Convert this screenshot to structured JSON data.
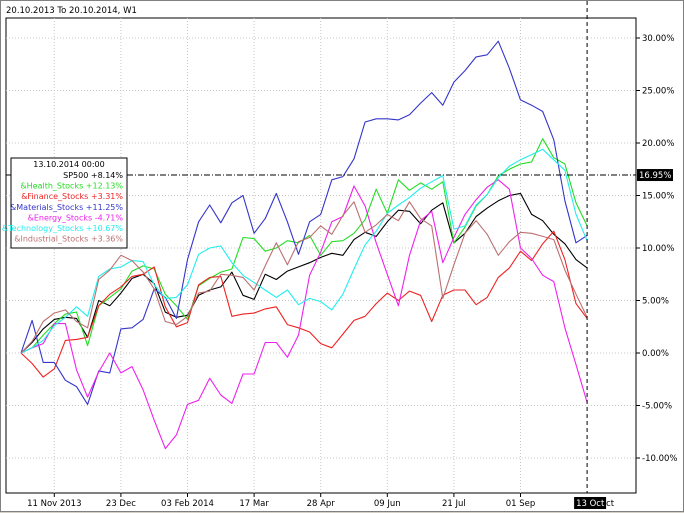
{
  "chart_data": {
    "type": "line",
    "title": "20.10.2013 To 20.10.2014, W1",
    "x_ticks": [
      "11 Nov 2013",
      "23 Dec",
      "03 Feb 2014",
      "17 Mar",
      "28 Apr",
      "09 Jun",
      "21 Jul",
      "01 Sep"
    ],
    "x_tick_weeks": [
      3,
      9,
      15,
      21,
      27,
      33,
      39,
      45
    ],
    "cursor_x_label": "13 Oct",
    "cursor_x_suffix": "ct",
    "cursor_y_label": "16.95%",
    "cursor_week": 51,
    "y_ticks": [
      "30.00%",
      "25.00%",
      "20.00%",
      "15.00%",
      "10.00%",
      "5.00%",
      "0.00%",
      "-5.00%",
      "-10.00%"
    ],
    "y_tick_values": [
      30,
      25,
      20,
      15,
      10,
      5,
      0,
      -5,
      -10
    ],
    "ylim": [
      -13.5,
      32.5
    ],
    "grid": true,
    "legend": {
      "header": "13.10.2014 00:00",
      "position": "top-left",
      "entries": [
        "SP500 +8.14%",
        "&Health_Stocks +12.13%",
        "&Finance_Stocks +3.31%",
        "&Materials_Stocks +11.25%",
        "&Energy_Stocks -4.71%",
        "&Technology_Stocks +10.67%",
        "&Industrial_Stocks +3.36%"
      ]
    },
    "series": [
      {
        "name": "SP500",
        "color": "#000000",
        "values": [
          0,
          1,
          2.3,
          3.2,
          3.4,
          3.3,
          1.5,
          5,
          4.5,
          5.7,
          7.1,
          7.5,
          6.6,
          3.9,
          3.4,
          3.6,
          5.5,
          6,
          6.3,
          7.7,
          5.5,
          5.1,
          7.5,
          7,
          7.8,
          8.2,
          8.6,
          9.1,
          9.5,
          9.3,
          10.8,
          11.5,
          11.1,
          12.5,
          13.6,
          13.5,
          12.3,
          13.6,
          14.3,
          10.5,
          11.4,
          13,
          13.8,
          14.5,
          15,
          15.2,
          13.2,
          12.6,
          11.3,
          10.4,
          8.9,
          8.1
        ]
      },
      {
        "name": "&Health_Stocks",
        "color": "#22dd22",
        "values": [
          0,
          0.5,
          1.7,
          2.8,
          3.7,
          3.9,
          0.7,
          4.5,
          5.3,
          6.1,
          7.8,
          8.3,
          8,
          5.6,
          4.5,
          3.2,
          6.4,
          7.1,
          7.7,
          8,
          11,
          10.9,
          9.7,
          10,
          10.7,
          10.5,
          11.2,
          9.3,
          10.6,
          10.7,
          11.4,
          12.7,
          15.6,
          13.3,
          16.5,
          15.5,
          16.2,
          15.6,
          16.3,
          10.5,
          12,
          14,
          15.1,
          16.9,
          17.5,
          18,
          18.2,
          20.4,
          18.6,
          18,
          14.3,
          12.1
        ]
      },
      {
        "name": "&Finance_Stocks",
        "color": "#ee2222",
        "values": [
          0,
          -1,
          -2.3,
          -1.5,
          1.2,
          1.3,
          1.5,
          4.5,
          5.6,
          6.3,
          7.3,
          7.5,
          8.2,
          4.4,
          2.5,
          2.9,
          6.5,
          7.2,
          7.3,
          3.5,
          3.7,
          3.8,
          4.2,
          4.4,
          2.7,
          2.4,
          2,
          0.9,
          0.5,
          1.8,
          3.1,
          3.5,
          4.7,
          5.7,
          5,
          5.9,
          5.5,
          3,
          5.5,
          6,
          6,
          4.6,
          5.3,
          7.2,
          8.1,
          9.7,
          8.8,
          10.4,
          11.6,
          8.9,
          4.7,
          3.3
        ]
      },
      {
        "name": "&Materials_Stocks",
        "color": "#3535cc",
        "values": [
          0,
          3.1,
          -0.9,
          -0.9,
          -2.6,
          -3.2,
          -4.9,
          -1.7,
          -1.9,
          2.3,
          2.4,
          3.2,
          6.1,
          5.3,
          3.3,
          8.9,
          12.5,
          14.1,
          12.4,
          14.3,
          15,
          11.4,
          12.8,
          15.2,
          12.5,
          9.4,
          12.5,
          13.2,
          16.5,
          16.8,
          18.5,
          22,
          22.3,
          22.3,
          22.2,
          22.7,
          23.8,
          24.8,
          23.6,
          25.8,
          26.9,
          28.2,
          28.4,
          29.7,
          27.1,
          24.1,
          23.6,
          23,
          20.3,
          14.5,
          10.5,
          11.2
        ]
      },
      {
        "name": "&Energy_Stocks",
        "color": "#ee22ee",
        "values": [
          0,
          0.5,
          0.9,
          2.8,
          2.8,
          -1.6,
          -4.2,
          -1.8,
          0,
          -1.9,
          -1.3,
          -3.5,
          -6.4,
          -9.1,
          -7.8,
          -4.9,
          -4.5,
          -2.4,
          -4,
          -4.8,
          -2,
          -2,
          1,
          1,
          -0.4,
          1.7,
          7.4,
          9.6,
          12.5,
          13,
          15.9,
          14,
          10.5,
          7.5,
          4.5,
          9.3,
          12.6,
          13.5,
          8.6,
          11,
          13.2,
          14.6,
          15.8,
          16.5,
          15.6,
          10,
          9,
          7.4,
          6.8,
          2.4,
          -1.1,
          -4.7
        ]
      },
      {
        "name": "&Technology_Stocks",
        "color": "#22eeee",
        "values": [
          0,
          0.5,
          1.2,
          2.6,
          3.4,
          4.4,
          3.5,
          7.3,
          8,
          8.2,
          8.8,
          8.7,
          6.5,
          5.2,
          5.3,
          6.5,
          9.4,
          10,
          10.2,
          8.6,
          7.4,
          6.7,
          6,
          5.3,
          6,
          4.6,
          5.2,
          4.9,
          4.1,
          5.6,
          8,
          10.3,
          11.6,
          13.3,
          14.1,
          14.8,
          15.7,
          16.3,
          16.9,
          11.8,
          12.1,
          14.1,
          15.1,
          16.7,
          17.8,
          18.4,
          18.9,
          19.4,
          18.4,
          17.4,
          13.2,
          10.7
        ]
      },
      {
        "name": "&Industrial_Stocks",
        "color": "#bb7070",
        "values": [
          0,
          1.1,
          3,
          3.8,
          4.1,
          3,
          2.4,
          7,
          7.9,
          9.3,
          8.8,
          7.7,
          6.1,
          3,
          2.7,
          3.5,
          5.7,
          5.9,
          7.5,
          7.4,
          7.2,
          6,
          8.3,
          10.5,
          8.4,
          10.6,
          11,
          12.1,
          11.3,
          13.1,
          14.4,
          11.5,
          12.2,
          13.2,
          12.6,
          14.4,
          12.8,
          12.1,
          5.2,
          8.4,
          11.4,
          12.6,
          11.3,
          9.3,
          10.6,
          11.5,
          11.4,
          11.1,
          10.8,
          7.9,
          5.6,
          3.4
        ]
      }
    ]
  }
}
